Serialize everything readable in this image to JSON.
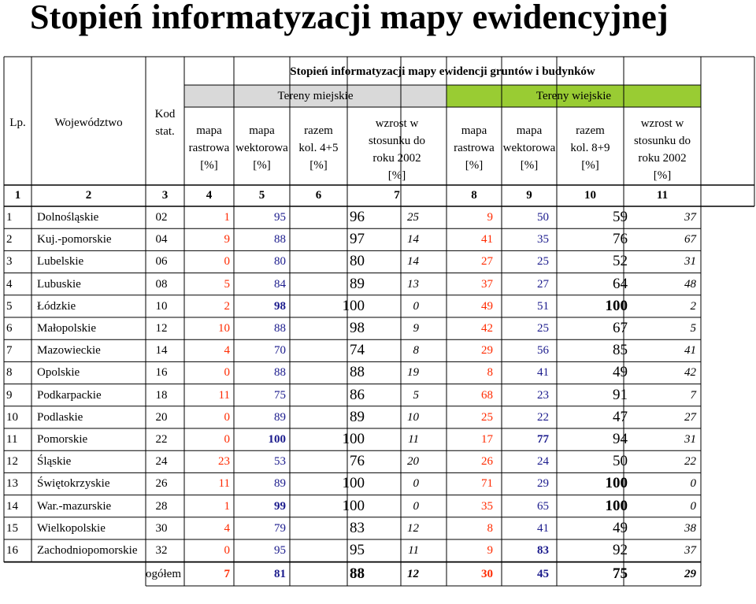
{
  "title": "Stopień informatyzacji mapy ewidencyjnej",
  "table": {
    "super_header": "Stopień informatyzacji mapy ewidencji gruntów i budynków",
    "group_miejskie": "Tereny miejskie",
    "group_wiejskie": "Tereny wiejskie",
    "colors": {
      "miejskie": "#d9d9d9",
      "wiejskie": "#99cc33",
      "raster_text": "#ff2a00",
      "vector_text": "#1a1a8c"
    },
    "headers": {
      "lp": "Lp.",
      "woj": "Województwo",
      "kod": [
        "Kod",
        "stat."
      ],
      "m_rastrowa": [
        "mapa",
        "rastrowa",
        "[%]"
      ],
      "m_wektorowa": [
        "mapa",
        "wektorowa",
        "[%]"
      ],
      "m_razem": [
        "razem",
        "kol. 4+5",
        "[%]"
      ],
      "m_wzrost": [
        "wzrost w",
        "stosunku do",
        "roku 2002",
        "[%]"
      ],
      "w_rastrowa": [
        "mapa",
        "rastrowa",
        "[%]"
      ],
      "w_wektorowa": [
        "mapa",
        "wektorowa",
        "[%]"
      ],
      "w_razem": [
        "razem",
        "kol. 8+9",
        "[%]"
      ],
      "w_wzrost": [
        "wzrost w",
        "stosunku do",
        "roku 2002",
        "[%]"
      ]
    },
    "col_numbers": [
      "1",
      "2",
      "3",
      "4",
      "5",
      "6",
      "7",
      "8",
      "9",
      "10",
      "11"
    ],
    "rows": [
      {
        "lp": "1",
        "woj": "Dolnośląskie",
        "kod": "02",
        "m_r": "1",
        "m_w": "95",
        "m_s": "96",
        "m_z": "25",
        "w_r": "9",
        "w_w": "50",
        "w_s": "59",
        "w_z": "37"
      },
      {
        "lp": "2",
        "woj": "Kuj.-pomorskie",
        "kod": "04",
        "m_r": "9",
        "m_w": "88",
        "m_s": "97",
        "m_z": "14",
        "w_r": "41",
        "w_w": "35",
        "w_s": "76",
        "w_z": "67"
      },
      {
        "lp": "3",
        "woj": "Lubelskie",
        "kod": "06",
        "m_r": "0",
        "m_w": "80",
        "m_s": "80",
        "m_z": "14",
        "w_r": "27",
        "w_w": "25",
        "w_s": "52",
        "w_z": "31"
      },
      {
        "lp": "4",
        "woj": "Lubuskie",
        "kod": "08",
        "m_r": "5",
        "m_w": "84",
        "m_s": "89",
        "m_z": "13",
        "w_r": "37",
        "w_w": "27",
        "w_s": "64",
        "w_z": "48"
      },
      {
        "lp": "5",
        "woj": "Łódzkie",
        "kod": "10",
        "m_r": "2",
        "m_w": "98",
        "m_s": "100",
        "m_z": "0",
        "w_r": "49",
        "w_w": "51",
        "w_s": "100",
        "w_z": "2"
      },
      {
        "lp": "6",
        "woj": "Małopolskie",
        "kod": "12",
        "m_r": "10",
        "m_w": "88",
        "m_s": "98",
        "m_z": "9",
        "w_r": "42",
        "w_w": "25",
        "w_s": "67",
        "w_z": "5"
      },
      {
        "lp": "7",
        "woj": "Mazowieckie",
        "kod": "14",
        "m_r": "4",
        "m_w": "70",
        "m_s": "74",
        "m_z": "8",
        "w_r": "29",
        "w_w": "56",
        "w_s": "85",
        "w_z": "41"
      },
      {
        "lp": "8",
        "woj": "Opolskie",
        "kod": "16",
        "m_r": "0",
        "m_w": "88",
        "m_s": "88",
        "m_z": "19",
        "w_r": "8",
        "w_w": "41",
        "w_s": "49",
        "w_z": "42"
      },
      {
        "lp": "9",
        "woj": "Podkarpackie",
        "kod": "18",
        "m_r": "11",
        "m_w": "75",
        "m_s": "86",
        "m_z": "5",
        "w_r": "68",
        "w_w": "23",
        "w_s": "91",
        "w_z": "7"
      },
      {
        "lp": "10",
        "woj": "Podlaskie",
        "kod": "20",
        "m_r": "0",
        "m_w": "89",
        "m_s": "89",
        "m_z": "10",
        "w_r": "25",
        "w_w": "22",
        "w_s": "47",
        "w_z": "27"
      },
      {
        "lp": "11",
        "woj": "Pomorskie",
        "kod": "22",
        "m_r": "0",
        "m_w": "100",
        "m_s": "100",
        "m_z": "11",
        "w_r": "17",
        "w_w": "77",
        "w_s": "94",
        "w_z": "31"
      },
      {
        "lp": "12",
        "woj": "Śląskie",
        "kod": "24",
        "m_r": "23",
        "m_w": "53",
        "m_s": "76",
        "m_z": "20",
        "w_r": "26",
        "w_w": "24",
        "w_s": "50",
        "w_z": "22"
      },
      {
        "lp": "13",
        "woj": "Świętokrzyskie",
        "kod": "26",
        "m_r": "11",
        "m_w": "89",
        "m_s": "100",
        "m_z": "0",
        "w_r": "71",
        "w_w": "29",
        "w_s": "100",
        "w_z": "0"
      },
      {
        "lp": "14",
        "woj": "War.-mazurskie",
        "kod": "28",
        "m_r": "1",
        "m_w": "99",
        "m_s": "100",
        "m_z": "0",
        "w_r": "35",
        "w_w": "65",
        "w_s": "100",
        "w_z": "0"
      },
      {
        "lp": "15",
        "woj": "Wielkopolskie",
        "kod": "30",
        "m_r": "4",
        "m_w": "79",
        "m_s": "83",
        "m_z": "12",
        "w_r": "8",
        "w_w": "41",
        "w_s": "49",
        "w_z": "38"
      },
      {
        "lp": "16",
        "woj": "Zachodniopomorskie",
        "kod": "32",
        "m_r": "0",
        "m_w": "95",
        "m_s": "95",
        "m_z": "11",
        "w_r": "9",
        "w_w": "83",
        "w_s": "92",
        "w_z": "37"
      }
    ],
    "total": {
      "label": "ogółem",
      "m_r": "7",
      "m_w": "81",
      "m_s": "88",
      "m_z": "12",
      "w_r": "30",
      "w_w": "45",
      "w_s": "75",
      "w_z": "29"
    }
  }
}
